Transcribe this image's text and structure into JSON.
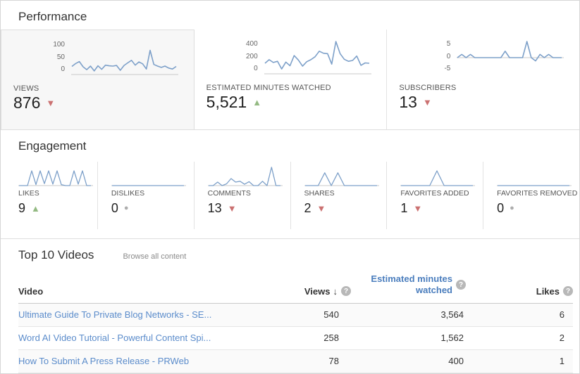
{
  "colors": {
    "sparkline": "#7da0c9",
    "chart_axis": "#c9c9c9",
    "positive": "#94ba83",
    "negative": "#cb7171",
    "neutral": "#adadad",
    "link_blue": "#5b8ccb",
    "header_blue": "#4a7dbd",
    "selected_card_bg": "#f7f7f7"
  },
  "icons": {
    "help": "?",
    "sort_desc": "↓",
    "trend_up": "▲",
    "trend_down": "▼",
    "trend_neutral": "●"
  },
  "performance": {
    "title": "Performance",
    "cards": [
      {
        "label": "VIEWS",
        "value": "876",
        "trend": "down",
        "yticks": [
          "100",
          "50",
          "0"
        ]
      },
      {
        "label": "ESTIMATED MINUTES WATCHED",
        "value": "5,521",
        "trend": "up",
        "yticks": [
          "400",
          "200",
          "0"
        ]
      },
      {
        "label": "SUBSCRIBERS",
        "value": "13",
        "trend": "down",
        "yticks": [
          "5",
          "0",
          "-5"
        ]
      }
    ]
  },
  "engagement": {
    "title": "Engagement",
    "items": [
      {
        "label": "LIKES",
        "value": "9",
        "trend": "up"
      },
      {
        "label": "DISLIKES",
        "value": "0",
        "trend": "neutral"
      },
      {
        "label": "COMMENTS",
        "value": "13",
        "trend": "down"
      },
      {
        "label": "SHARES",
        "value": "2",
        "trend": "down"
      },
      {
        "label": "FAVORITES ADDED",
        "value": "1",
        "trend": "down"
      },
      {
        "label": "FAVORITES REMOVED",
        "value": "0",
        "trend": "neutral"
      }
    ]
  },
  "videos": {
    "title": "Top 10 Videos",
    "browse_label": "Browse all content",
    "columns": {
      "video": "Video",
      "views": "Views",
      "estimated": "Estimated minutes watched",
      "likes": "Likes"
    },
    "rows": [
      {
        "title": "Ultimate Guide To Private Blog Networks - SE...",
        "views": "540",
        "estimated": "3,564",
        "likes": "6"
      },
      {
        "title": "Word AI Video Tutorial - Powerful Content Spi...",
        "views": "258",
        "estimated": "1,562",
        "likes": "2"
      },
      {
        "title": "How To Submit A Press Release - PRWeb",
        "views": "78",
        "estimated": "400",
        "likes": "1"
      }
    ]
  },
  "chart_data": [
    {
      "type": "line",
      "name": "views-sparkline",
      "title": "Views",
      "ylim": [
        0,
        100
      ],
      "yticks": [
        100,
        50,
        0
      ],
      "values": [
        25,
        34,
        40,
        24,
        15,
        26,
        11,
        27,
        16,
        29,
        27,
        26,
        28,
        13,
        28,
        36,
        44,
        29,
        39,
        33,
        17,
        75,
        31,
        26,
        22,
        26,
        20,
        17,
        25
      ]
    },
    {
      "type": "line",
      "name": "estimated-minutes-sparkline",
      "title": "Estimated minutes watched",
      "ylim": [
        0,
        400
      ],
      "yticks": [
        400,
        200,
        0
      ],
      "values": [
        130,
        175,
        140,
        155,
        60,
        145,
        100,
        225,
        170,
        95,
        150,
        175,
        210,
        280,
        255,
        250,
        120,
        400,
        250,
        180,
        155,
        165,
        220,
        105,
        135,
        130
      ]
    },
    {
      "type": "line",
      "name": "subscribers-sparkline",
      "title": "Subscribers",
      "ylim": [
        -5,
        5
      ],
      "yticks": [
        5,
        0,
        -5
      ],
      "values": [
        0,
        1,
        0,
        1,
        0,
        0,
        0,
        0,
        0,
        0,
        0,
        2,
        0,
        0,
        0,
        0,
        5,
        0,
        -1,
        1,
        0,
        1,
        0,
        0,
        0
      ]
    },
    {
      "type": "line",
      "name": "likes-sparkline",
      "title": "Likes",
      "ylim": [
        0,
        4
      ],
      "values": [
        0,
        0,
        0,
        3,
        0.2,
        3,
        0.4,
        3,
        0.3,
        3,
        0.2,
        0,
        0,
        3,
        0.3,
        3,
        0,
        0
      ]
    },
    {
      "type": "line",
      "name": "dislikes-sparkline",
      "title": "Dislikes",
      "ylim": [
        0,
        4
      ],
      "values": [
        0,
        0
      ]
    },
    {
      "type": "line",
      "name": "comments-sparkline",
      "title": "Comments",
      "ylim": [
        0,
        4.5
      ],
      "values": [
        0,
        0,
        0.8,
        0,
        0.4,
        1.6,
        0.8,
        1,
        0.3,
        0.9,
        0,
        0,
        1,
        0,
        4.2,
        0,
        0
      ]
    },
    {
      "type": "line",
      "name": "shares-sparkline",
      "title": "Shares",
      "ylim": [
        0,
        4
      ],
      "values": [
        0,
        0,
        0,
        2.6,
        0,
        2.6,
        0,
        0,
        0,
        0,
        0,
        0
      ]
    },
    {
      "type": "line",
      "name": "favorites-added-sparkline",
      "title": "Favorites added",
      "ylim": [
        0,
        4
      ],
      "values": [
        0,
        0,
        0,
        0,
        0,
        3,
        0,
        0,
        0,
        0,
        0
      ]
    },
    {
      "type": "line",
      "name": "favorites-removed-sparkline",
      "title": "Favorites removed",
      "ylim": [
        0,
        4
      ],
      "values": [
        0,
        0
      ]
    }
  ]
}
